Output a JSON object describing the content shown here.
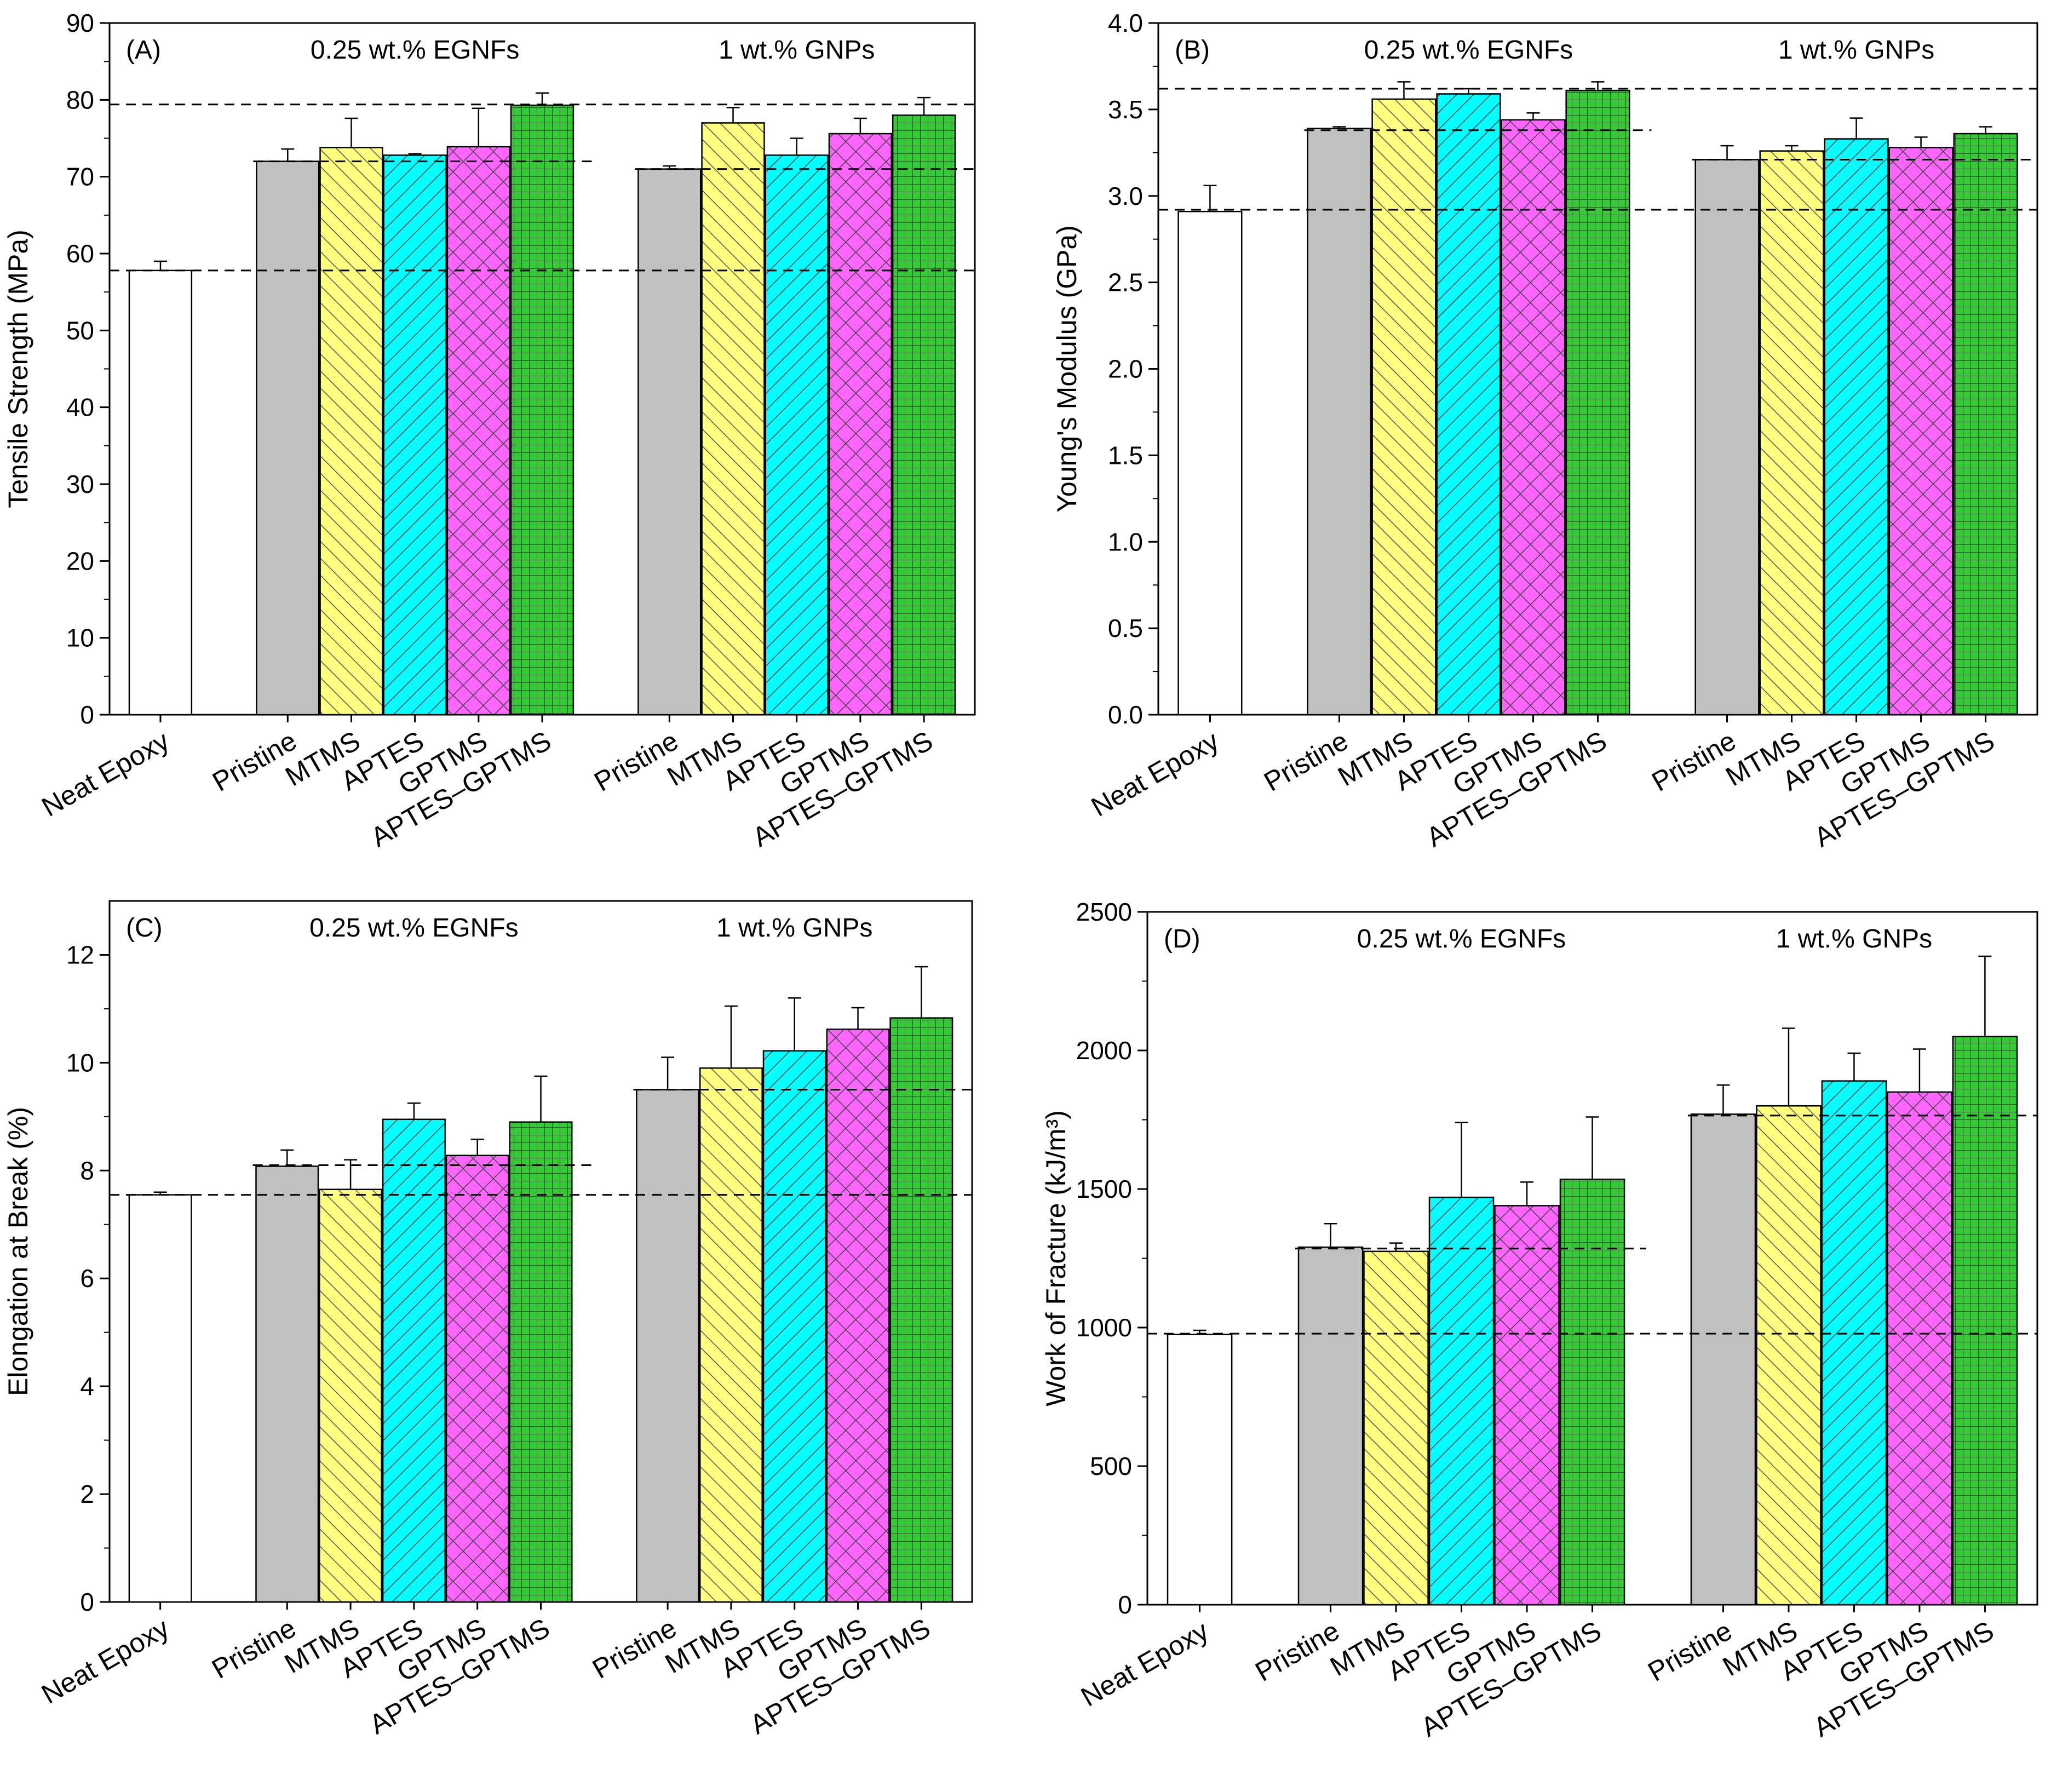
{
  "figure": {
    "categories": [
      "Neat Epoxy",
      "Pristine",
      "MTMS",
      "APTES",
      "GPTMS",
      "APTES–GPTMS",
      "Pristine",
      "MTMS",
      "APTES",
      "GPTMS",
      "APTES–GPTMS"
    ],
    "group_labels": [
      "0.25 wt.% EGNFs",
      "1 wt.% GNPs"
    ],
    "bar_styles": {
      "Neat Epoxy": {
        "fill": "#ffffff",
        "pattern": "none"
      },
      "Pristine": {
        "fill": "#c0c0c0",
        "pattern": "none"
      },
      "MTMS": {
        "fill": "#ffff80",
        "pattern": "hatch-forward"
      },
      "APTES": {
        "fill": "#00ffff",
        "pattern": "hatch-back"
      },
      "GPTMS": {
        "fill": "#ff66ff",
        "pattern": "crosshatch"
      },
      "APTES–GPTMS": {
        "fill": "#33cc33",
        "pattern": "grid"
      }
    }
  },
  "chart_data": [
    {
      "panel": "(A)",
      "type": "bar",
      "ylabel": "Tensile Strength (MPa)",
      "ylim": [
        0,
        90
      ],
      "yticks": [
        0,
        10,
        20,
        30,
        40,
        50,
        60,
        70,
        80,
        90
      ],
      "values": [
        57.8,
        72.0,
        73.8,
        72.8,
        73.9,
        79.3,
        71.0,
        77.0,
        72.8,
        75.6,
        78.0
      ],
      "errors": [
        1.2,
        1.6,
        3.8,
        0.2,
        5.0,
        1.6,
        0.4,
        2.0,
        2.2,
        2.0,
        2.3
      ],
      "reference_lines": [
        {
          "value": 79.4,
          "from_bar": 0,
          "to_bar": 10
        },
        {
          "value": 72.0,
          "from_bar": 1,
          "to_bar": 5
        },
        {
          "value": 71.0,
          "from_bar": 6,
          "to_bar": 10
        },
        {
          "value": 57.8,
          "from_bar": 0,
          "to_bar": 10
        }
      ]
    },
    {
      "panel": "(B)",
      "type": "bar",
      "ylabel": "Young's Modulus (GPa)",
      "ylim": [
        0.0,
        4.0
      ],
      "yticks": [
        "0.0",
        "0.5",
        "1.0",
        "1.5",
        "2.0",
        "2.5",
        "3.0",
        "3.5",
        "4.0"
      ],
      "values": [
        2.91,
        3.39,
        3.56,
        3.59,
        3.44,
        3.61,
        3.21,
        3.26,
        3.33,
        3.28,
        3.36
      ],
      "errors": [
        0.15,
        0.01,
        0.1,
        0.03,
        0.04,
        0.05,
        0.08,
        0.03,
        0.12,
        0.06,
        0.04
      ],
      "reference_lines": [
        {
          "value": 3.62,
          "from_bar": 0,
          "to_bar": 10
        },
        {
          "value": 3.38,
          "from_bar": 1,
          "to_bar": 5
        },
        {
          "value": 3.21,
          "from_bar": 6,
          "to_bar": 10
        },
        {
          "value": 2.92,
          "from_bar": 0,
          "to_bar": 10
        }
      ]
    },
    {
      "panel": "(C)",
      "type": "bar",
      "ylabel": "Elongation at Break (%)",
      "ylim": [
        0,
        13
      ],
      "yticks": [
        0,
        2,
        4,
        6,
        8,
        10,
        12
      ],
      "values": [
        7.55,
        8.08,
        7.65,
        8.95,
        8.28,
        8.9,
        9.5,
        9.9,
        10.22,
        10.62,
        10.83
      ],
      "errors": [
        0.05,
        0.3,
        0.55,
        0.3,
        0.3,
        0.85,
        0.6,
        1.15,
        0.98,
        0.4,
        0.95
      ],
      "reference_lines": [
        {
          "value": 8.1,
          "from_bar": 1,
          "to_bar": 5
        },
        {
          "value": 7.55,
          "from_bar": 0,
          "to_bar": 10
        },
        {
          "value": 9.5,
          "from_bar": 6,
          "to_bar": 10
        }
      ]
    },
    {
      "panel": "(D)",
      "type": "bar",
      "ylabel": "Work of Fracture (kJ/m³)",
      "ylim": [
        0,
        2500
      ],
      "yticks": [
        0,
        500,
        1000,
        1500,
        2000,
        2500
      ],
      "values": [
        975,
        1290,
        1275,
        1470,
        1440,
        1535,
        1770,
        1800,
        1890,
        1850,
        2050
      ],
      "errors": [
        15,
        85,
        30,
        270,
        85,
        225,
        105,
        280,
        100,
        155,
        290
      ],
      "reference_lines": [
        {
          "value": 1285,
          "from_bar": 1,
          "to_bar": 5
        },
        {
          "value": 1765,
          "from_bar": 6,
          "to_bar": 10
        },
        {
          "value": 978,
          "from_bar": 0,
          "to_bar": 10
        }
      ]
    }
  ]
}
